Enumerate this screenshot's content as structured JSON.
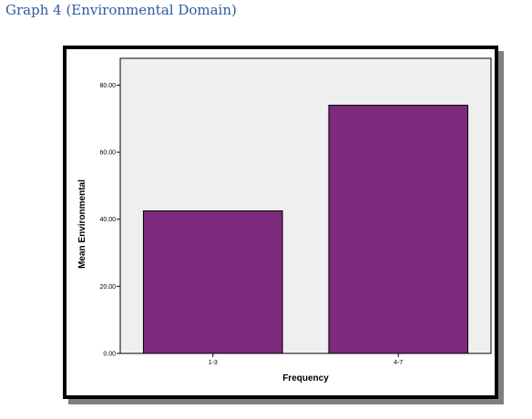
{
  "caption": "Graph 4 (Environmental Domain)",
  "chart_data": {
    "type": "bar",
    "categories": [
      "1-3",
      "4-7"
    ],
    "values": [
      42.5,
      74.0
    ],
    "xlabel": "Frequency",
    "ylabel": "Mean Environmental",
    "ylim": [
      0,
      88
    ],
    "yticks": [
      "0.00",
      "20.00",
      "40.00",
      "60.00",
      "80.00"
    ],
    "grid": false,
    "bar_color": "#7b2a7c",
    "plot_background": "#efefef"
  }
}
